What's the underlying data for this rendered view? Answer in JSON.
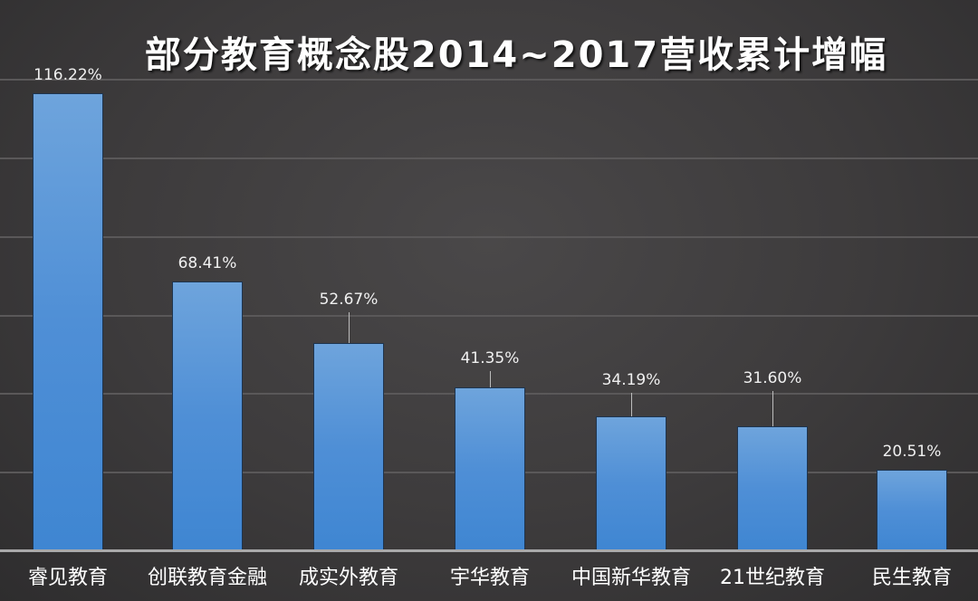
{
  "chart_data": {
    "type": "bar",
    "title": "部分教育概念股2014~2017营收累计增幅",
    "categories": [
      "睿见教育",
      "创联教育金融",
      "成实外教育",
      "宇华教育",
      "中国新华教育",
      "21世纪教育",
      "民生教育"
    ],
    "values": [
      116.22,
      68.41,
      52.67,
      41.35,
      34.19,
      31.6,
      20.51
    ],
    "value_labels": [
      "116.22%",
      "68.41%",
      "52.67%",
      "41.35%",
      "34.19%",
      "31.60%",
      "20.51%"
    ],
    "xlabel": "",
    "ylabel": "",
    "ylim": [
      0,
      120
    ],
    "grid": true,
    "grid_step": 20,
    "legend": "none",
    "colors": {
      "bar": "#4f8fd6",
      "background": "#3d3b3c",
      "text": "#ffffff"
    }
  }
}
